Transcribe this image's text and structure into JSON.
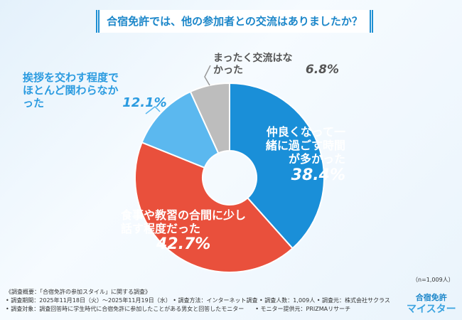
{
  "title": "合宿免許では、他の参加者との交流はありましたか？",
  "chart_data": {
    "type": "pie",
    "title": "合宿免許では、他の参加者との交流はありましたか？",
    "categories": [
      "仲良くなって一緒に過ごす時間が多かった",
      "食事や教習の合間に少し話す程度だった",
      "挨拶を交わす程度でほとんど関わらなかった",
      "まったく交流はなかった"
    ],
    "values": [
      38.4,
      42.7,
      12.1,
      6.8
    ],
    "value_labels": [
      "38.4%",
      "42.7%",
      "12.1%",
      "6.8%"
    ],
    "colors": [
      "#1a8fd8",
      "#e9503c",
      "#5bb8ef",
      "#bdbdbd"
    ],
    "donut": true
  },
  "sample": "（n=1,009人）",
  "footnotes": [
    "《調査概要：「合宿免許の参加スタイル」に関する調査》",
    "• 調査期間：2025年11月18日（火）〜2025年11月19日（水） • 調査方法：インターネット調査 • 調査人数：1,009人 • 調査元：株式会社サクラス",
    "• 調査対象：調査回答時に学生時代に合宿免許に参加したことがある男女と回答したモニター　　• モニター提供元：PRIZMAリサーチ"
  ],
  "logo": [
    "合宿免許",
    "マイスター"
  ]
}
